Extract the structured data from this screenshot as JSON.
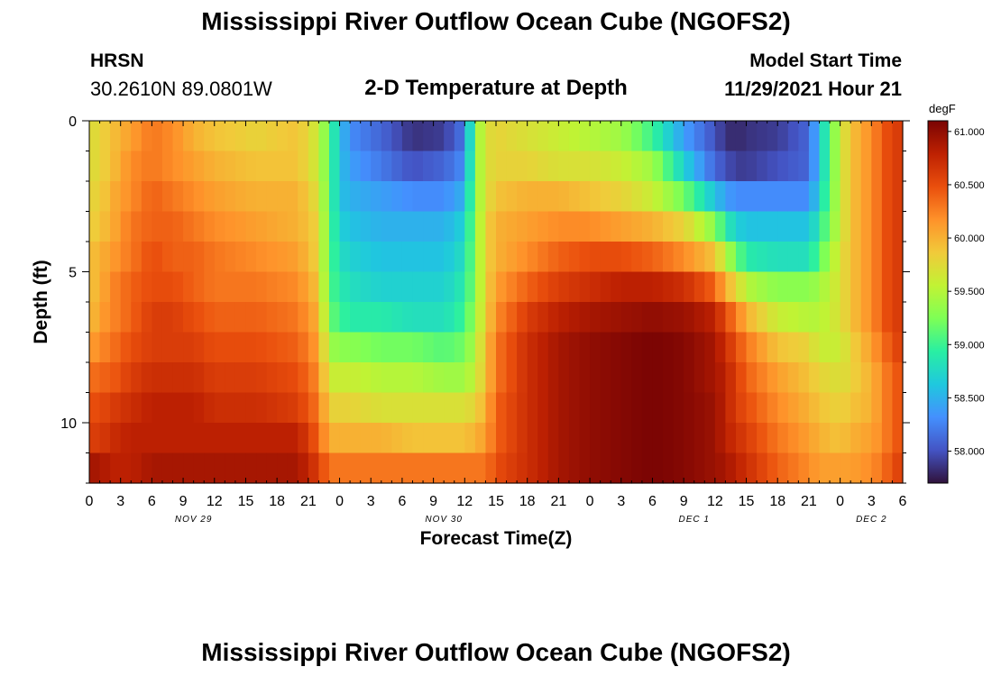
{
  "header": {
    "title": "Mississippi River Outflow Ocean Cube (NGOFS2)",
    "station": "HRSN",
    "coords": "30.2610N  89.0801W",
    "subtitle": "2-D Temperature at Depth",
    "start_label": "Model Start Time",
    "start_value": "11/29/2021 Hour 21"
  },
  "footer": {
    "title": "Mississippi River Outflow Ocean Cube (NGOFS2)"
  },
  "colors": {
    "palette": [
      "#30123b",
      "#4454c4",
      "#4490fe",
      "#1fc8de",
      "#29efa2",
      "#7eff55",
      "#c1f334",
      "#f1ca3a",
      "#fe922a",
      "#ea4f0d",
      "#be2102",
      "#7a0403"
    ]
  },
  "chart_data": {
    "type": "heatmap",
    "xlabel": "Forecast Time(Z)",
    "ylabel": "Depth (ft)",
    "colorbar_unit": "degF",
    "colorbar_range": [
      57.7,
      61.1
    ],
    "colorbar_ticks": [
      "58.000",
      "58.500",
      "59.000",
      "59.500",
      "60.000",
      "60.500",
      "61.000"
    ],
    "colorbar_tick_values": [
      58.0,
      58.5,
      59.0,
      59.5,
      60.0,
      60.5,
      61.0
    ],
    "y_range": [
      0,
      12
    ],
    "y_tick_labels": [
      "0",
      "5",
      "10"
    ],
    "y_tick_values": [
      0,
      5,
      10
    ],
    "x_range_hours": [
      0,
      78
    ],
    "x_tick_labels": [
      "0",
      "3",
      "6",
      "9",
      "12",
      "15",
      "18",
      "21",
      "0",
      "3",
      "6",
      "9",
      "12",
      "15",
      "18",
      "21",
      "0",
      "3",
      "6",
      "9",
      "12",
      "15",
      "18",
      "21",
      "0",
      "3",
      "6"
    ],
    "x_tick_hours": [
      0,
      3,
      6,
      9,
      12,
      15,
      18,
      21,
      24,
      27,
      30,
      33,
      36,
      39,
      42,
      45,
      48,
      51,
      54,
      57,
      60,
      63,
      66,
      69,
      72,
      75,
      78
    ],
    "date_labels": [
      "NOV 29",
      "NOV 30",
      "DEC 1",
      "DEC 2"
    ],
    "date_label_hours": [
      10,
      34,
      58,
      75
    ],
    "depth_levels_ft": [
      0.5,
      1.5,
      2.5,
      3.5,
      4.5,
      5.5,
      6.5,
      7.5,
      8.5,
      9.5,
      10.5,
      11.5
    ],
    "time_knots_hours": [
      0,
      1,
      2,
      4,
      6,
      8,
      10,
      12,
      16,
      20,
      22,
      23,
      24,
      25,
      28,
      31,
      34,
      36,
      37,
      38,
      39,
      42,
      45,
      48,
      51,
      54,
      57,
      60,
      61,
      62,
      63,
      66,
      69,
      70,
      72,
      73,
      75,
      76,
      77,
      78
    ],
    "temperature_knots_degF": [
      [
        59.7,
        59.8,
        59.9,
        60.1,
        60.3,
        60.2,
        60.0,
        59.9,
        59.8,
        59.9,
        59.6,
        59.1,
        58.6,
        58.3,
        58.1,
        57.85,
        57.9,
        58.2,
        59.3,
        59.7,
        59.8,
        59.7,
        59.6,
        59.5,
        59.4,
        59.0,
        58.4,
        58.0,
        57.85,
        57.8,
        57.85,
        57.9,
        58.1,
        58.6,
        59.6,
        59.9,
        60.2,
        60.4,
        60.6,
        60.6
      ],
      [
        59.7,
        59.8,
        59.9,
        60.2,
        60.3,
        60.2,
        60.1,
        60.0,
        59.9,
        59.9,
        59.6,
        59.1,
        58.6,
        58.4,
        58.2,
        58.0,
        58.1,
        58.3,
        59.3,
        59.7,
        59.8,
        59.8,
        59.7,
        59.7,
        59.6,
        59.4,
        58.7,
        58.1,
        58.0,
        57.9,
        57.9,
        58.0,
        58.1,
        58.6,
        59.6,
        59.9,
        60.2,
        60.4,
        60.6,
        60.6
      ],
      [
        59.8,
        59.8,
        60.0,
        60.2,
        60.4,
        60.3,
        60.2,
        60.1,
        60.0,
        60.0,
        59.7,
        59.1,
        58.6,
        58.5,
        58.4,
        58.3,
        58.3,
        58.5,
        59.3,
        59.7,
        59.9,
        60.0,
        60.0,
        59.9,
        59.8,
        59.6,
        59.2,
        58.6,
        58.4,
        58.3,
        58.3,
        58.3,
        58.3,
        58.7,
        59.6,
        59.9,
        60.2,
        60.4,
        60.6,
        60.6
      ],
      [
        59.8,
        59.9,
        60.0,
        60.3,
        60.4,
        60.4,
        60.3,
        60.2,
        60.1,
        60.0,
        59.8,
        59.1,
        58.7,
        58.6,
        58.5,
        58.5,
        58.5,
        58.7,
        59.3,
        59.8,
        60.0,
        60.1,
        60.2,
        60.2,
        60.1,
        60.0,
        59.8,
        59.3,
        58.9,
        58.7,
        58.6,
        58.6,
        58.6,
        58.9,
        59.6,
        59.9,
        60.2,
        60.4,
        60.6,
        60.6
      ],
      [
        59.9,
        60.0,
        60.1,
        60.3,
        60.5,
        60.4,
        60.4,
        60.3,
        60.2,
        60.1,
        59.8,
        59.1,
        58.8,
        58.7,
        58.6,
        58.6,
        58.6,
        58.8,
        59.3,
        59.8,
        60.0,
        60.2,
        60.4,
        60.5,
        60.5,
        60.4,
        60.2,
        59.9,
        59.5,
        59.2,
        58.9,
        58.8,
        58.8,
        59.1,
        59.7,
        59.9,
        60.2,
        60.4,
        60.6,
        60.6
      ],
      [
        59.9,
        60.0,
        60.2,
        60.4,
        60.5,
        60.5,
        60.4,
        60.3,
        60.3,
        60.2,
        59.9,
        59.1,
        58.9,
        58.8,
        58.7,
        58.7,
        58.7,
        58.9,
        59.3,
        59.8,
        60.1,
        60.4,
        60.6,
        60.7,
        60.8,
        60.8,
        60.7,
        60.4,
        60.0,
        59.8,
        59.5,
        59.3,
        59.3,
        59.4,
        59.7,
        59.9,
        60.2,
        60.4,
        60.6,
        60.6
      ],
      [
        59.9,
        60.1,
        60.2,
        60.4,
        60.6,
        60.6,
        60.5,
        60.4,
        60.4,
        60.3,
        60.0,
        59.2,
        59.0,
        58.9,
        58.9,
        58.8,
        58.8,
        59.0,
        59.4,
        59.8,
        60.2,
        60.6,
        60.8,
        60.9,
        60.95,
        61.0,
        60.95,
        60.8,
        60.5,
        60.3,
        60.0,
        59.6,
        59.5,
        59.5,
        59.7,
        59.9,
        60.2,
        60.4,
        60.6,
        60.6
      ],
      [
        60.1,
        60.2,
        60.3,
        60.5,
        60.6,
        60.6,
        60.6,
        60.5,
        60.5,
        60.4,
        60.1,
        59.4,
        59.3,
        59.3,
        59.2,
        59.2,
        59.1,
        59.2,
        59.5,
        59.9,
        60.3,
        60.7,
        60.9,
        61.0,
        61.05,
        61.1,
        61.05,
        60.9,
        60.7,
        60.5,
        60.3,
        59.9,
        59.8,
        59.6,
        59.6,
        59.8,
        60.1,
        60.3,
        60.5,
        60.6
      ],
      [
        60.3,
        60.4,
        60.4,
        60.6,
        60.7,
        60.7,
        60.7,
        60.6,
        60.6,
        60.5,
        60.2,
        59.6,
        59.6,
        59.6,
        59.5,
        59.5,
        59.4,
        59.4,
        59.6,
        59.9,
        60.3,
        60.7,
        60.9,
        61.0,
        61.05,
        61.1,
        61.05,
        60.9,
        60.8,
        60.6,
        60.4,
        60.1,
        59.9,
        59.8,
        59.7,
        59.8,
        60.0,
        60.2,
        60.4,
        60.5
      ],
      [
        60.5,
        60.5,
        60.6,
        60.7,
        60.8,
        60.8,
        60.8,
        60.7,
        60.7,
        60.6,
        60.3,
        59.8,
        59.8,
        59.8,
        59.7,
        59.7,
        59.7,
        59.7,
        59.8,
        60.0,
        60.4,
        60.7,
        60.9,
        61.0,
        61.05,
        61.1,
        61.05,
        60.95,
        60.8,
        60.6,
        60.5,
        60.2,
        60.0,
        59.9,
        59.8,
        59.9,
        60.0,
        60.2,
        60.4,
        60.5
      ],
      [
        60.6,
        60.6,
        60.7,
        60.8,
        60.8,
        60.8,
        60.8,
        60.8,
        60.8,
        60.8,
        60.4,
        60.0,
        60.0,
        60.0,
        60.0,
        59.9,
        59.9,
        59.9,
        60.0,
        60.1,
        60.4,
        60.7,
        60.9,
        61.0,
        61.05,
        61.1,
        61.05,
        60.95,
        60.8,
        60.7,
        60.6,
        60.3,
        60.1,
        60.0,
        59.9,
        60.0,
        60.1,
        60.2,
        60.4,
        60.5
      ],
      [
        60.9,
        60.9,
        60.8,
        60.8,
        60.9,
        60.9,
        60.9,
        60.9,
        60.9,
        60.9,
        60.6,
        60.3,
        60.3,
        60.3,
        60.3,
        60.3,
        60.3,
        60.3,
        60.3,
        60.3,
        60.5,
        60.7,
        60.9,
        61.0,
        61.05,
        61.1,
        61.05,
        60.95,
        60.9,
        60.8,
        60.7,
        60.4,
        60.2,
        60.1,
        60.1,
        60.1,
        60.2,
        60.3,
        60.5,
        60.6
      ]
    ]
  }
}
